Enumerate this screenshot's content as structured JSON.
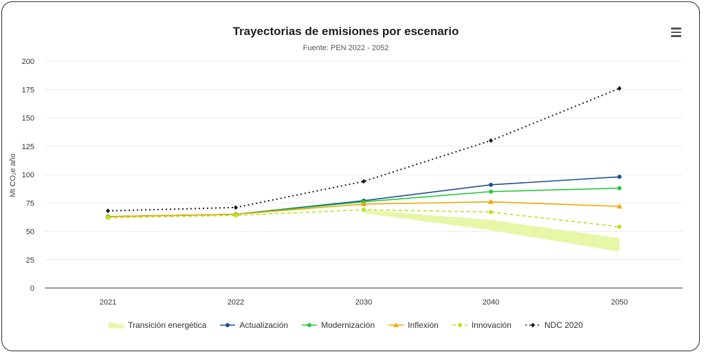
{
  "chart": {
    "title": "Trayectorias de emisiones por escenario",
    "subtitle": "Fuente: PEN 2022 - 2052",
    "menu_icon": "hamburger-menu-icon"
  },
  "colors": {
    "transicion": "#e6f7a8",
    "actualizacion": "#1f4e8c",
    "modernizacion": "#22c93a",
    "inflexion": "#f0a800",
    "innovacion": "#b5e61d",
    "ndc": "#1a1a1a"
  },
  "chart_data": {
    "type": "line",
    "categories": [
      "2021",
      "2022",
      "2030",
      "2040",
      "2050"
    ],
    "ylabel": "Mt CO₂e año",
    "xlabel": "",
    "ylim": [
      0,
      200
    ],
    "yticks": [
      0,
      25,
      50,
      75,
      100,
      125,
      150,
      175,
      200
    ],
    "grid": true,
    "legend_position": "bottom",
    "band": {
      "name": "Transición energética",
      "start_index": 2,
      "low": [
        66,
        51,
        32
      ],
      "high": [
        69,
        60,
        44
      ]
    },
    "series": [
      {
        "name": "Actualización",
        "key": "actualizacion",
        "marker": "circle",
        "dash": "",
        "values": [
          63,
          65,
          77,
          91,
          98
        ]
      },
      {
        "name": "Modernización",
        "key": "modernizacion",
        "marker": "circle",
        "dash": "",
        "values": [
          63,
          65,
          76,
          85,
          88
        ]
      },
      {
        "name": "Inflexión",
        "key": "inflexion",
        "marker": "triangle",
        "dash": "",
        "values": [
          63,
          65,
          74,
          76,
          72
        ]
      },
      {
        "name": "Innovación",
        "key": "innovacion",
        "marker": "circle",
        "dash": "dashed",
        "values": [
          62,
          64,
          69,
          67,
          54
        ]
      },
      {
        "name": "NDC 2020",
        "key": "ndc",
        "marker": "diamond",
        "dash": "dotted",
        "values": [
          68,
          71,
          94,
          130,
          176
        ]
      }
    ]
  }
}
